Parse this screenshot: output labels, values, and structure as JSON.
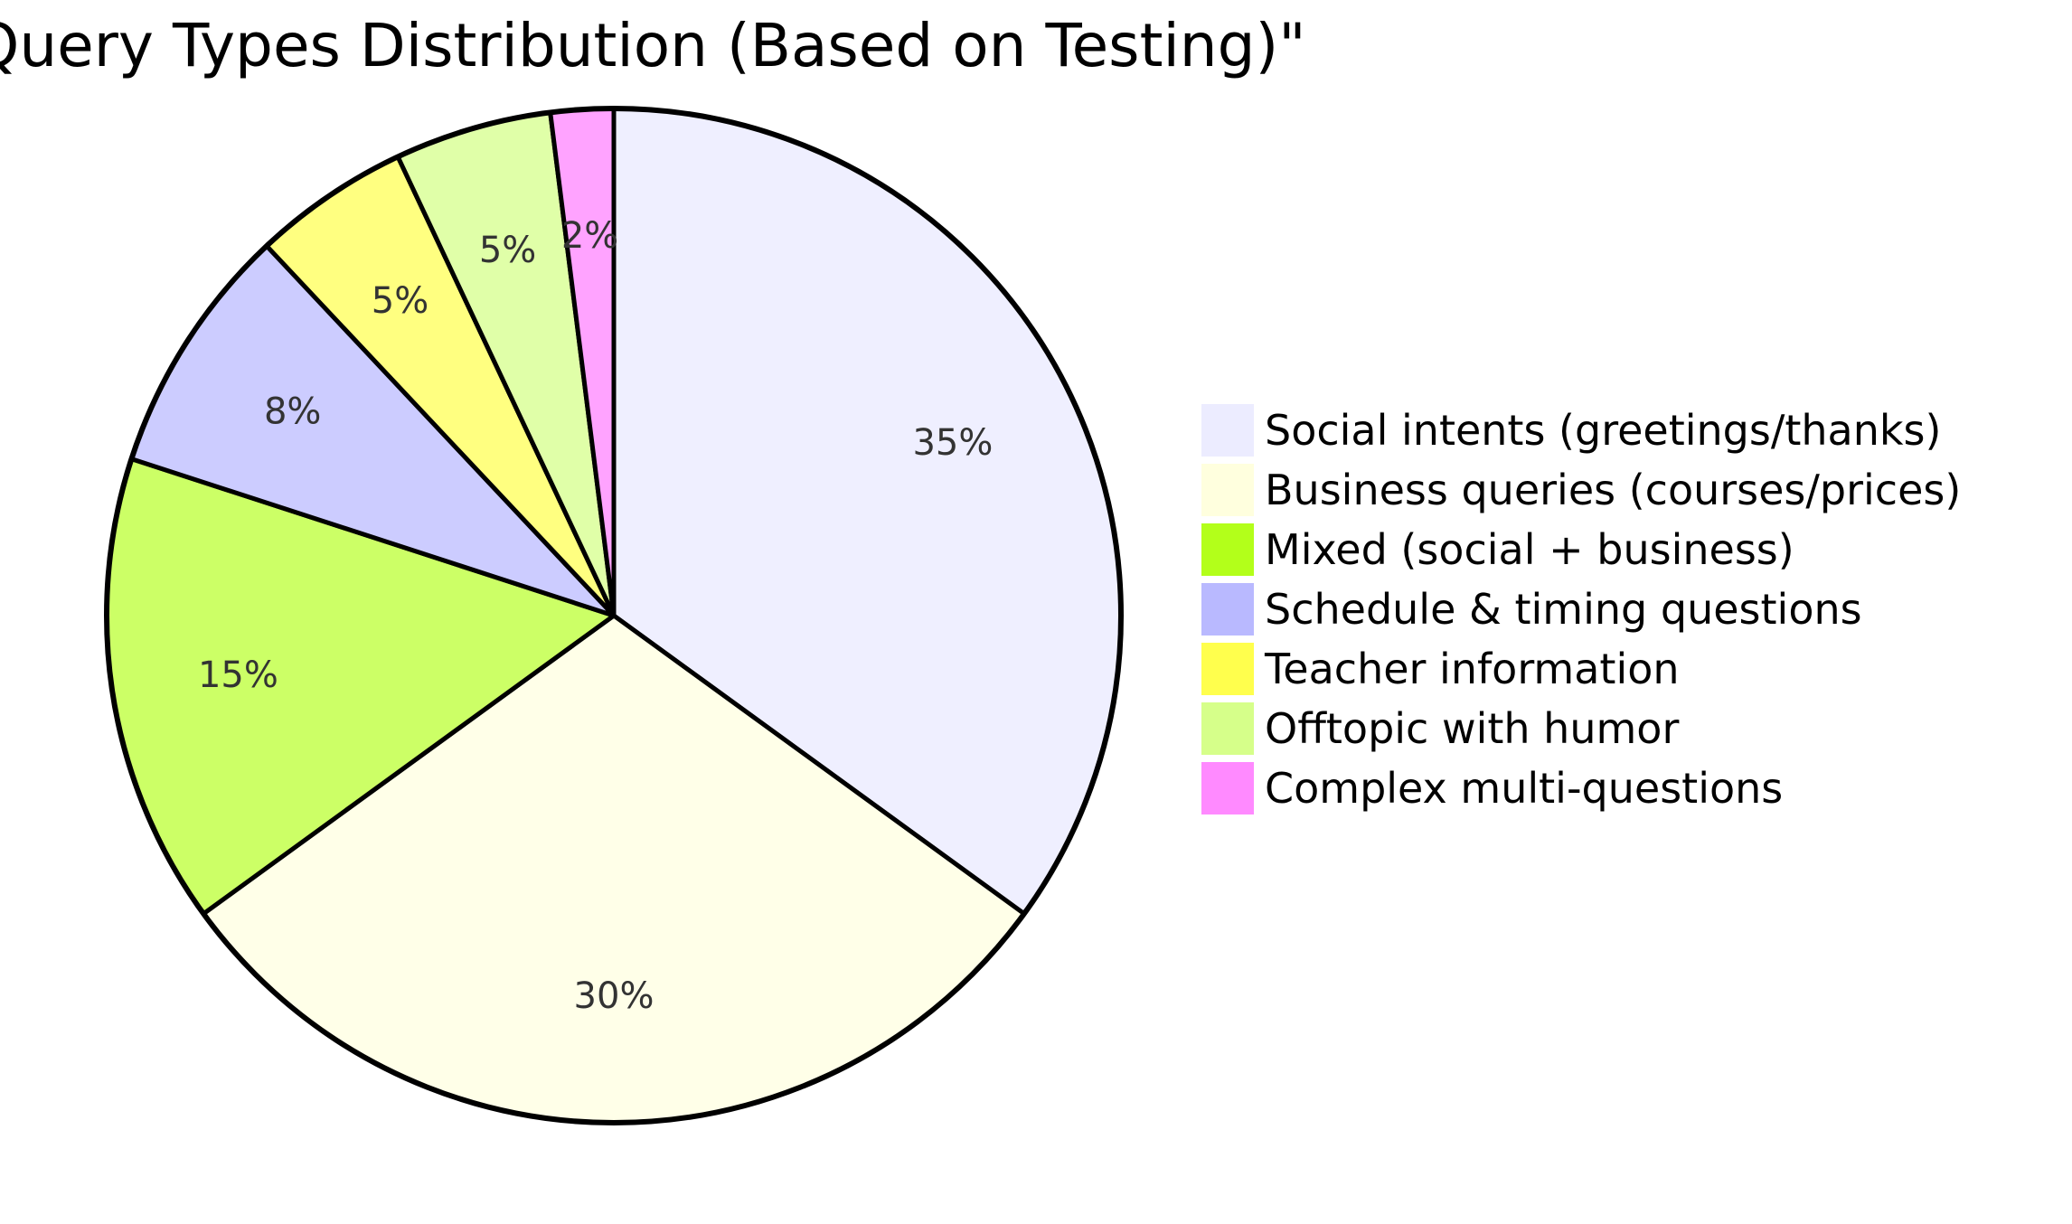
{
  "chart_data": {
    "type": "pie",
    "title": "Query Types Distribution (Based on Testing)\"",
    "legend_position": "right",
    "slices": [
      {
        "label": "Social intents (greetings/thanks)",
        "value": 35,
        "display": "35%",
        "color": "#efefff"
      },
      {
        "label": "Business queries (courses/prices)",
        "value": 30,
        "display": "30%",
        "color": "#ffffe8"
      },
      {
        "label": "Mixed (social + business)",
        "value": 15,
        "display": "15%",
        "color": "#ccff66"
      },
      {
        "label": "Schedule & timing questions",
        "value": 8,
        "display": "8%",
        "color": "#ccccff"
      },
      {
        "label": "Teacher information",
        "value": 5,
        "display": "5%",
        "color": "#ffff80"
      },
      {
        "label": "Offtopic with humor",
        "value": 5,
        "display": "5%",
        "color": "#e0ffa8"
      },
      {
        "label": "Complex multi-questions",
        "value": 2,
        "display": "2%",
        "color": "#ffa3ff"
      }
    ],
    "legend_swatch_colors": [
      "#ececff",
      "#ffffde",
      "#b3ff1a",
      "#b9b9ff",
      "#ffff4d",
      "#d6ff8a",
      "#ff8aff"
    ]
  }
}
